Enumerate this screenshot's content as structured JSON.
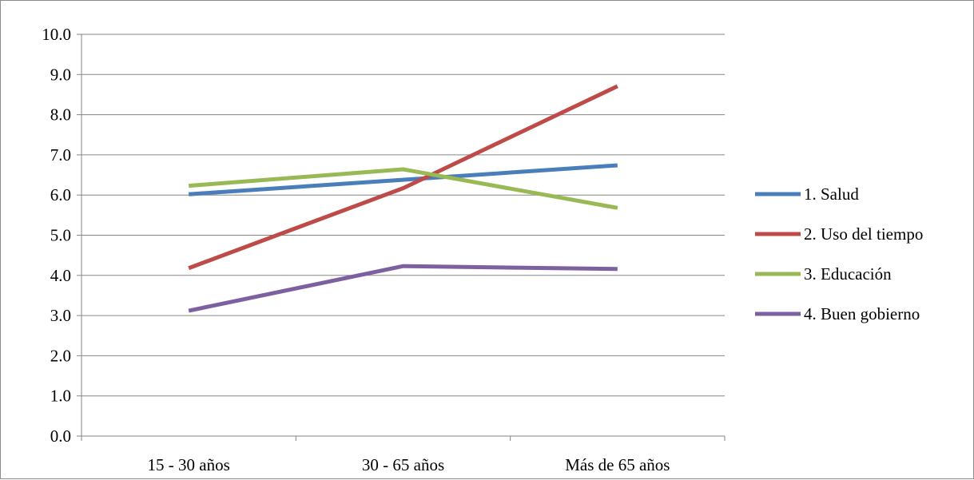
{
  "chart_data": {
    "type": "line",
    "categories": [
      "15 - 30 años",
      "30 - 65 años",
      "Más de 65 años"
    ],
    "series": [
      {
        "name": "1. Salud",
        "values": [
          6.02,
          6.38,
          6.74
        ],
        "color": "#4a7ebb"
      },
      {
        "name": "2. Uso del tiempo",
        "values": [
          4.18,
          6.17,
          8.71
        ],
        "color": "#be4b48"
      },
      {
        "name": "3. Educación",
        "values": [
          6.23,
          6.64,
          5.68
        ],
        "color": "#98b954"
      },
      {
        "name": "4. Buen gobierno",
        "values": [
          3.12,
          4.23,
          4.16
        ],
        "color": "#7d60a0"
      }
    ],
    "y_ticks": [
      "0.0",
      "1.0",
      "2.0",
      "3.0",
      "4.0",
      "5.0",
      "6.0",
      "7.0",
      "8.0",
      "9.0",
      "10.0"
    ],
    "ylim": [
      0,
      10
    ],
    "grid": true,
    "legend_position": "right",
    "gridline_color": "#868686"
  }
}
